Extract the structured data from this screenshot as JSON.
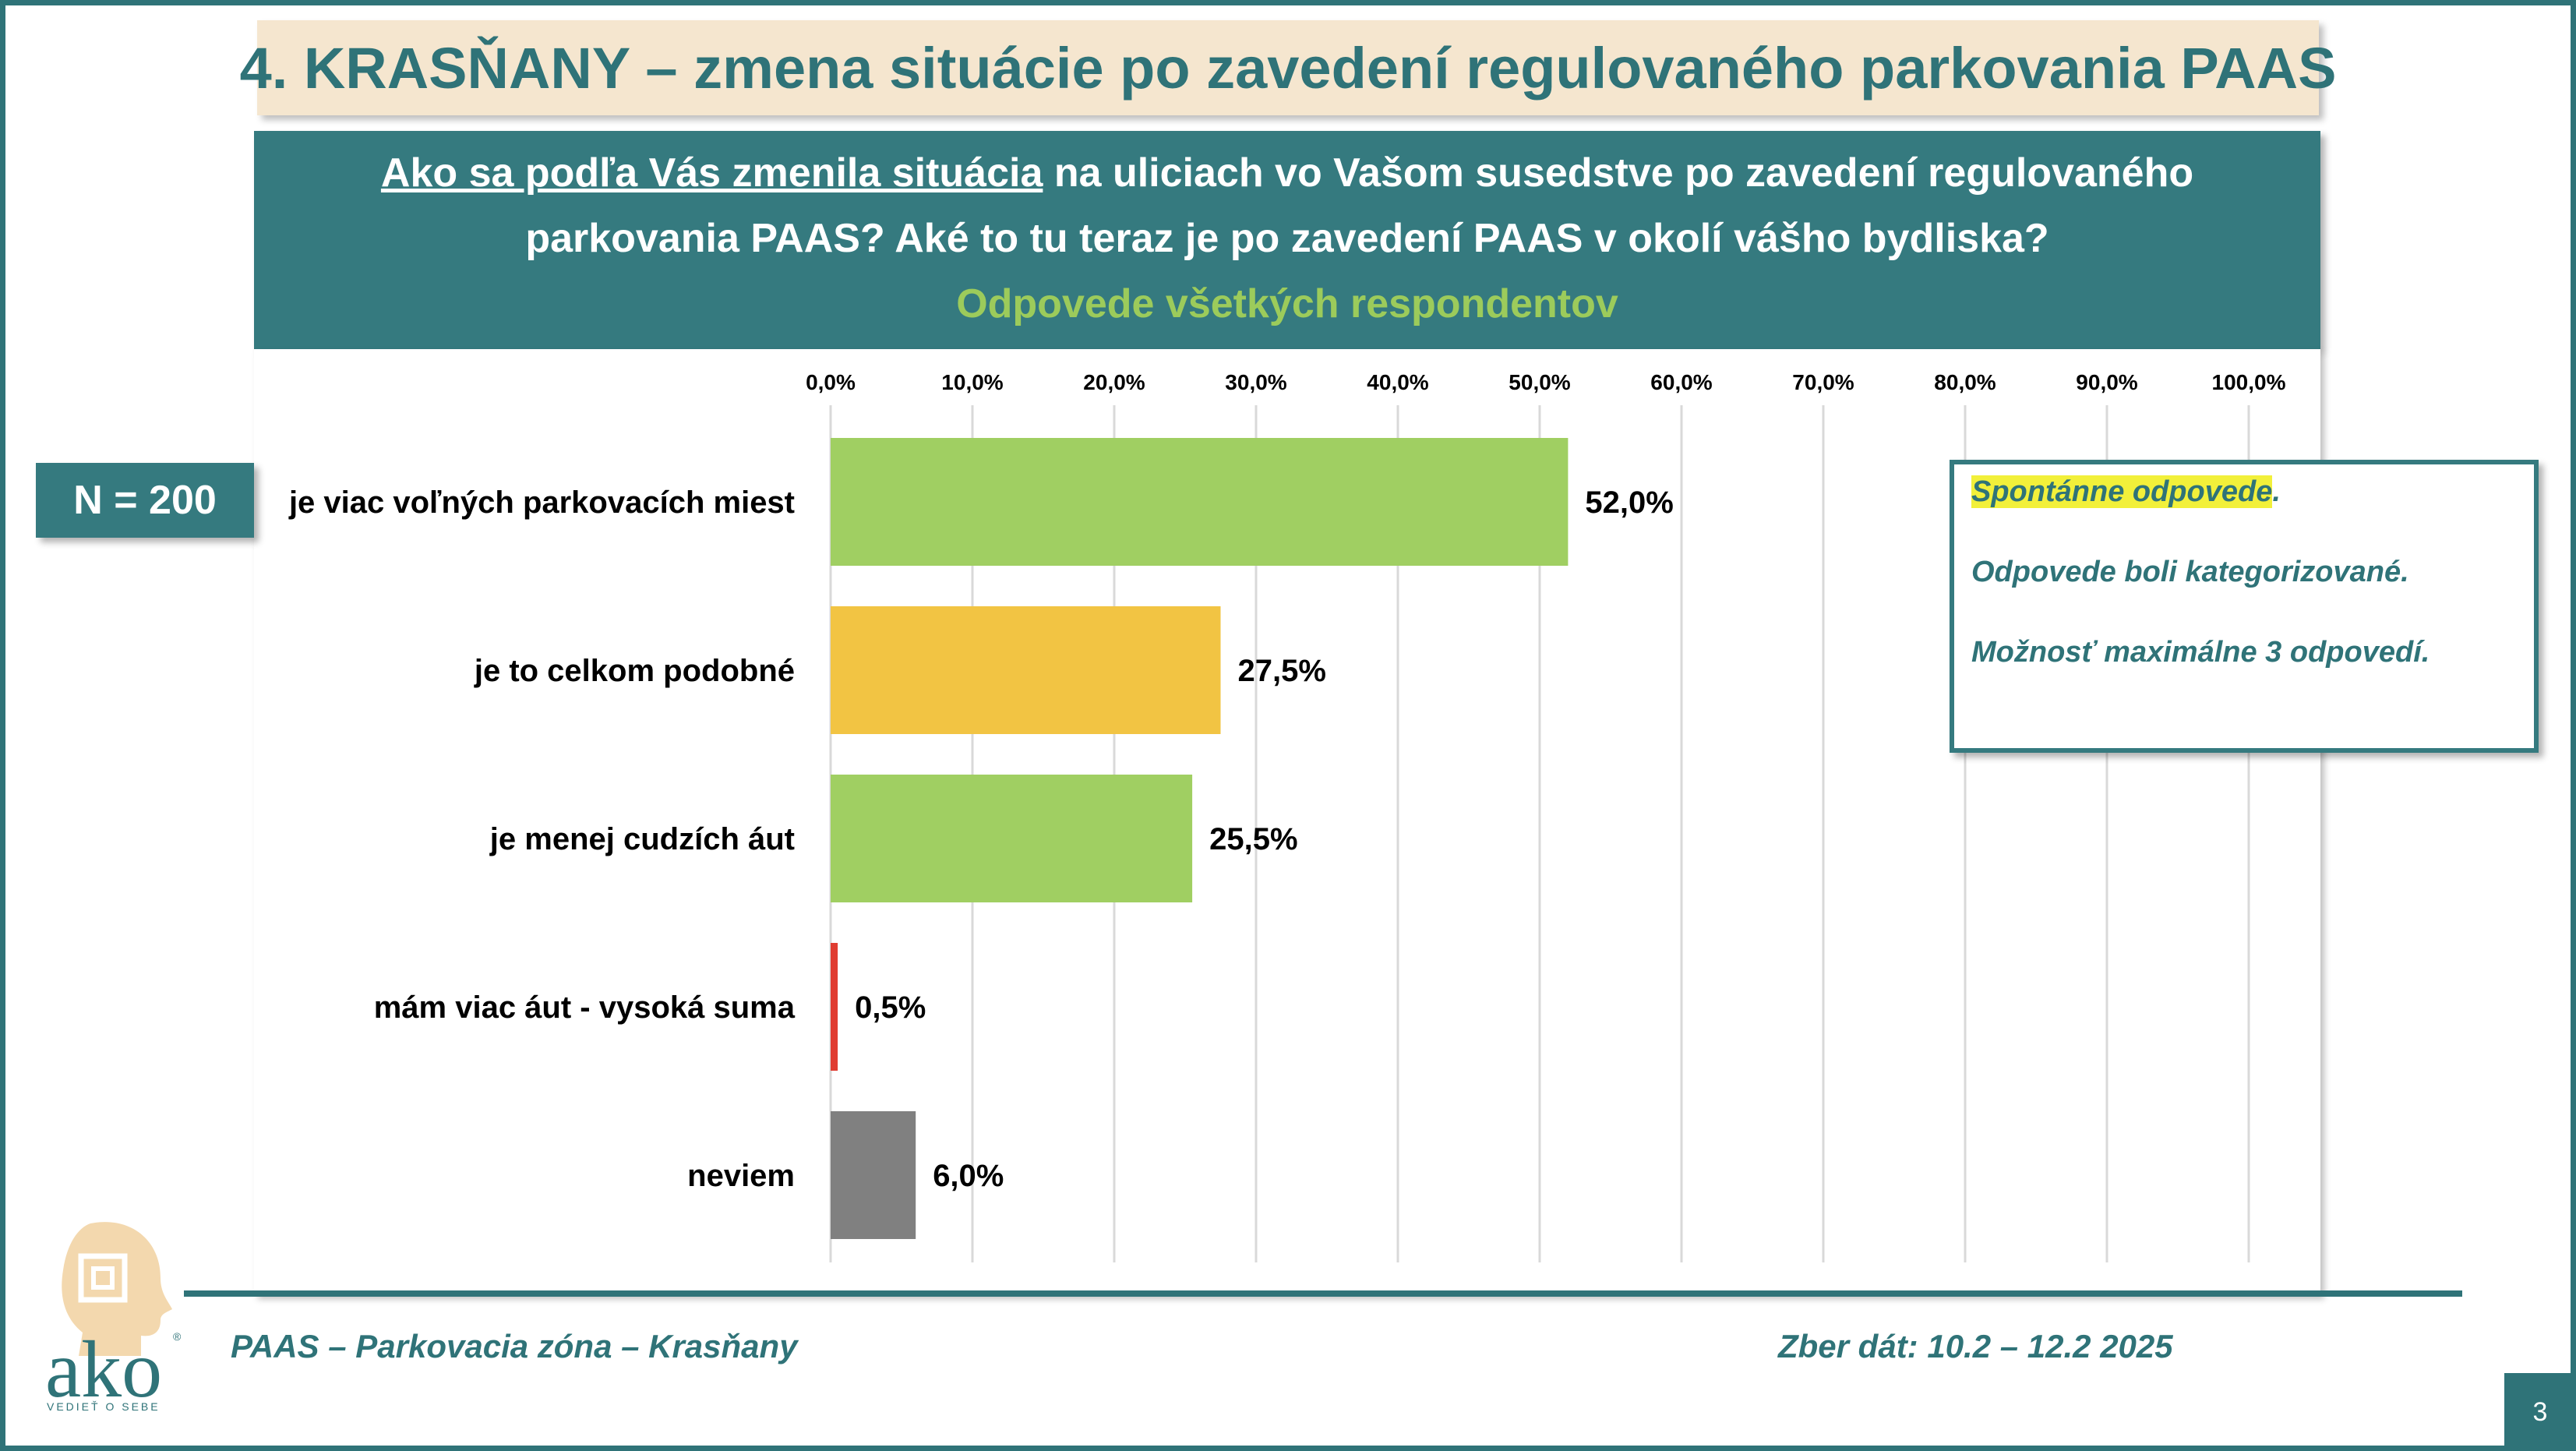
{
  "slide": {
    "title": "4. KRASŇANY – zmena situácie po zavedení  regulovaného parkovania PAAS",
    "question_underlined": "Ako sa podľa Vás zmenila situácia",
    "question_rest_line1": " na uliciach vo Vašom susedstve po zavedení regulovaného",
    "question_line2": "parkovania PAAS? Aké to tu teraz je po zavedení PAAS v okolí vášho bydliska?",
    "subtitle": "Odpovede všetkých respondentov",
    "sample_size": "N = 200",
    "notes": {
      "line1": "Spontánne odpovede",
      "line1_suffix": ".",
      "line2": "Odpovede boli kategorizované.",
      "line3": "Možnosť maximálne 3 odpovedí."
    },
    "footer_left": "PAAS – Parkovacia zóna – Krasňany",
    "footer_right": "Zber dát: 10.2 – 12.2 2025",
    "page_number": "3",
    "logo": {
      "wordmark": "ako",
      "tagline": "VEDIEŤ O SEBE",
      "registered": "®"
    }
  },
  "chart_data": {
    "type": "bar",
    "orientation": "horizontal",
    "categories": [
      "je viac voľných parkovacích miest",
      "je to celkom podobné",
      "je menej cudzích áut",
      "mám viac áut - vysoká suma",
      "neviem"
    ],
    "values": [
      52.0,
      27.5,
      25.5,
      0.5,
      6.0
    ],
    "value_labels": [
      "52,0%",
      "27,5%",
      "25,5%",
      "0,5%",
      "6,0%"
    ],
    "colors": [
      "#a0cf62",
      "#f2c443",
      "#a0cf62",
      "#e03c31",
      "#808080"
    ],
    "xlim": [
      0,
      100
    ],
    "ticks": [
      0,
      10,
      20,
      30,
      40,
      50,
      60,
      70,
      80,
      90,
      100
    ],
    "tick_labels": [
      "0,0%",
      "10,0%",
      "20,0%",
      "30,0%",
      "40,0%",
      "50,0%",
      "60,0%",
      "70,0%",
      "80,0%",
      "90,0%",
      "100,0%"
    ],
    "grid": true
  }
}
